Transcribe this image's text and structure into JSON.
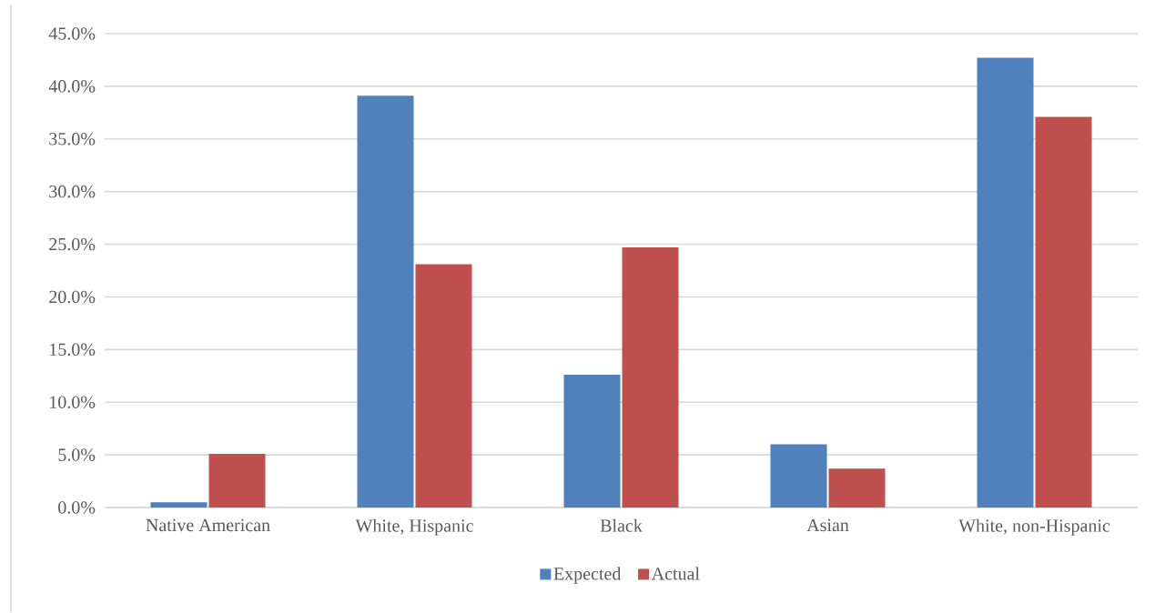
{
  "chart_data": {
    "type": "bar",
    "categories": [
      "Native American",
      "White, Hispanic",
      "Black",
      "Asian",
      "White, non-Hispanic"
    ],
    "series": [
      {
        "name": "Expected",
        "color": "#4f81bd",
        "values": [
          0.5,
          39.1,
          12.6,
          6.0,
          42.7
        ]
      },
      {
        "name": "Actual",
        "color": "#c0504d",
        "values": [
          5.1,
          23.1,
          24.7,
          3.7,
          37.1
        ]
      }
    ],
    "ylim": [
      0,
      45
    ],
    "yticks": [
      {
        "value": 0,
        "label": "0.0%"
      },
      {
        "value": 5,
        "label": "5.0%"
      },
      {
        "value": 10,
        "label": "10.0%"
      },
      {
        "value": 15,
        "label": "15.0%"
      },
      {
        "value": 20,
        "label": "20.0%"
      },
      {
        "value": 25,
        "label": "25.0%"
      },
      {
        "value": 30,
        "label": "30.0%"
      },
      {
        "value": 35,
        "label": "35.0%"
      },
      {
        "value": 40,
        "label": "40.0%"
      },
      {
        "value": 45,
        "label": "45.0%"
      }
    ],
    "grid": "y",
    "legend": "bottom"
  }
}
